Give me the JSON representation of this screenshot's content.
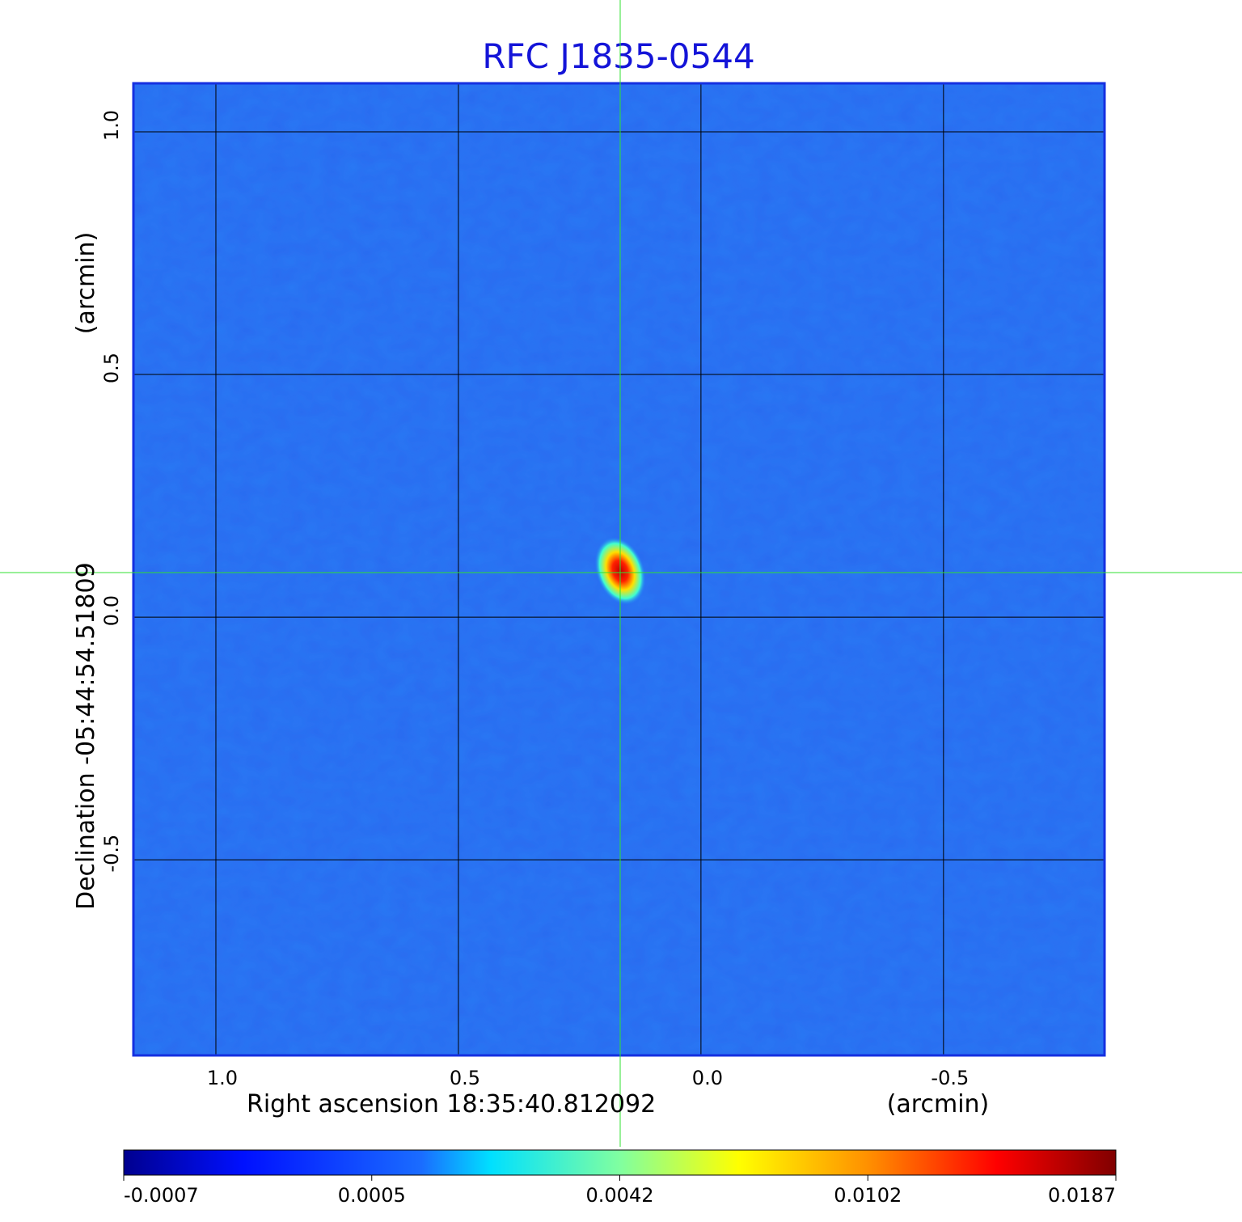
{
  "chart_data": {
    "type": "image",
    "title": "RFC J1835-0544",
    "xlabel": "Right ascension  18:35:40.812092",
    "xunit": "(arcmin)",
    "ylabel": "Declination  -05:44:54.51809",
    "yunit": "(arcmin)",
    "xlim": [
      1.17,
      -0.832
    ],
    "ylim": [
      -0.903,
      1.1
    ],
    "xticks": [
      {
        "value": 1,
        "label": "1.0"
      },
      0.5,
      {
        "value": 0,
        "label": "0.0"
      },
      -0.5
    ],
    "yticks": [
      -0.5,
      {
        "value": 0,
        "label": "0.0"
      },
      0.5,
      {
        "value": 1,
        "label": "1.0"
      }
    ],
    "grid": true,
    "colorbar": {
      "ticks": [
        -0.0007,
        0.0005,
        0.0042,
        0.0102,
        0.0187
      ]
    }
  }
}
